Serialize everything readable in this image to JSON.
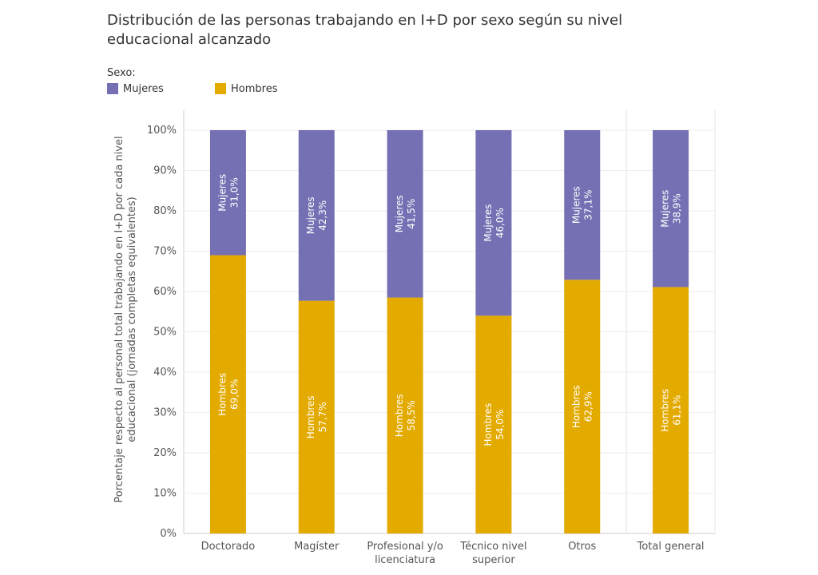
{
  "chart_data": {
    "type": "bar",
    "stacked": true,
    "title": "Distribución de las personas trabajando en I+D por sexo según su nivel educacional alcanzado",
    "legend_title": "Sexo:",
    "ylabel": "Porcentaje respecto al personal total trabajando en I+D por cada nivel educacional (jornadas completas equivalentes)",
    "xlabel": "",
    "ylim": [
      0,
      100
    ],
    "yticks": [
      "0%",
      "10%",
      "20%",
      "30%",
      "40%",
      "50%",
      "60%",
      "70%",
      "80%",
      "90%",
      "100%"
    ],
    "categories": [
      "Doctorado",
      "Magíster",
      "Profesional y/o licenciatura",
      "Técnico nivel superior",
      "Otros",
      "Total general"
    ],
    "category_lines": [
      [
        "Doctorado"
      ],
      [
        "Magíster"
      ],
      [
        "Profesional y/o",
        "licenciatura"
      ],
      [
        "Técnico nivel",
        "superior"
      ],
      [
        "Otros"
      ],
      [
        "Total general"
      ]
    ],
    "series": [
      {
        "name": "Hombres",
        "color": "#E3AA00",
        "values": [
          69.0,
          57.7,
          58.5,
          54.0,
          62.9,
          61.1
        ],
        "labels": [
          "69,0%",
          "57,7%",
          "58,5%",
          "54,0%",
          "62,9%",
          "61,1%"
        ]
      },
      {
        "name": "Mujeres",
        "color": "#7570B3",
        "values": [
          31.0,
          42.3,
          41.5,
          46.0,
          37.1,
          38.9
        ],
        "labels": [
          "31,0%",
          "42,3%",
          "41,5%",
          "46,0%",
          "37,1%",
          "38,9%"
        ]
      }
    ],
    "legend": [
      {
        "name": "Mujeres",
        "color": "#7570B3"
      },
      {
        "name": "Hombres",
        "color": "#E3AA00"
      }
    ]
  }
}
